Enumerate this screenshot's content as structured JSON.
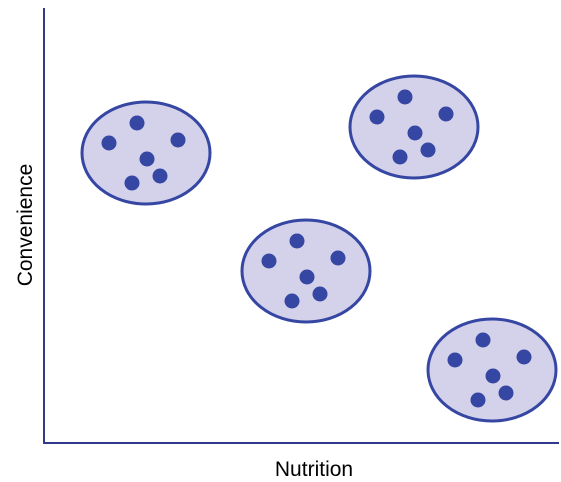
{
  "axes": {
    "x_label": "Nutrition",
    "y_label": "Convenience"
  },
  "colors": {
    "axis": "#2f3a8c",
    "cluster_fill": "#d4d2ea",
    "cluster_stroke": "#3646a3",
    "dot": "#3646a3"
  },
  "clusters": [
    {
      "name": "cluster-top-left",
      "dots": 6
    },
    {
      "name": "cluster-top-right",
      "dots": 6
    },
    {
      "name": "cluster-center",
      "dots": 6
    },
    {
      "name": "cluster-bottom-right",
      "dots": 6
    }
  ]
}
